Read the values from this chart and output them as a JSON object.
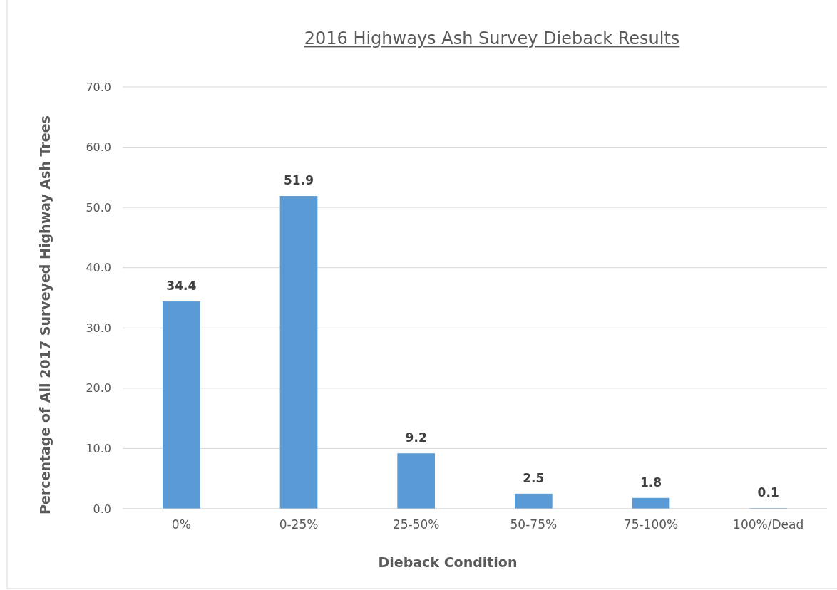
{
  "chart_data": {
    "type": "bar",
    "title": "2016 Highways Ash Survey Dieback Results",
    "xlabel": "Dieback Condition",
    "ylabel": "Percentage of All 2017 Surveyed Highway Ash Trees",
    "categories": [
      "0%",
      "0-25%",
      "25-50%",
      "50-75%",
      "75-100%",
      "100%/Dead"
    ],
    "values": [
      34.4,
      51.9,
      9.2,
      2.5,
      1.8,
      0.1
    ],
    "color": "#5b9bd5",
    "ylim": [
      0,
      70
    ],
    "yticks": [
      {
        "value": 0,
        "label": "0.0"
      },
      {
        "value": 10,
        "label": "10.0"
      },
      {
        "value": 20,
        "label": "20.0"
      },
      {
        "value": 30,
        "label": "30.0"
      },
      {
        "value": 40,
        "label": "40.0"
      },
      {
        "value": 50,
        "label": "50.0"
      },
      {
        "value": 60,
        "label": "60.0"
      },
      {
        "value": 70,
        "label": "70.0"
      }
    ],
    "grid": "y",
    "data_labels": true,
    "value_labels": [
      "34.4",
      "51.9",
      "9.2",
      "2.5",
      "1.8",
      "0.1"
    ]
  }
}
